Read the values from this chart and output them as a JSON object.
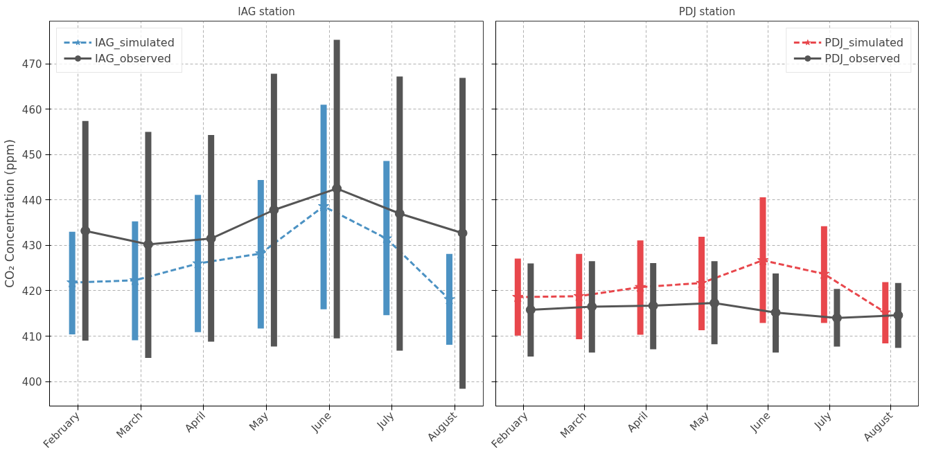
{
  "chart_data": [
    {
      "type": "line",
      "title": "IAG station",
      "ylabel": "CO₂ Concentration (ppm)",
      "categories": [
        "February",
        "March",
        "April",
        "May",
        "June",
        "July",
        "August"
      ],
      "series": [
        {
          "name": "IAG_simulated",
          "color": "#4c92c3",
          "marker": "star",
          "line_style": "dashed",
          "values": [
            421.8,
            422.3,
            426.0,
            428.2,
            438.6,
            431.5,
            418.1
          ],
          "errors": [
            [
              410.4,
              433.0
            ],
            [
              409.1,
              435.3
            ],
            [
              410.9,
              441.1
            ],
            [
              411.7,
              444.4
            ],
            [
              415.9,
              461.0
            ],
            [
              414.6,
              448.6
            ],
            [
              408.1,
              428.1
            ]
          ]
        },
        {
          "name": "IAG_observed",
          "color": "#555555",
          "marker": "circle",
          "line_style": "solid",
          "values": [
            433.2,
            430.2,
            431.5,
            437.8,
            442.5,
            437.0,
            432.7
          ],
          "errors": [
            [
              409.0,
              457.4
            ],
            [
              405.2,
              455.0
            ],
            [
              408.8,
              454.3
            ],
            [
              407.7,
              467.8
            ],
            [
              409.5,
              475.3
            ],
            [
              406.8,
              467.2
            ],
            [
              398.4,
              466.9
            ]
          ]
        }
      ],
      "ylim": [
        394.6,
        479.4
      ],
      "yticks": [
        400,
        410,
        420,
        430,
        440,
        450,
        460,
        470
      ],
      "grid": true,
      "legend": "top left"
    },
    {
      "type": "line",
      "title": "PDJ station",
      "categories": [
        "February",
        "March",
        "April",
        "May",
        "June",
        "July",
        "August"
      ],
      "series": [
        {
          "name": "PDJ_simulated",
          "color": "#e8474c",
          "marker": "star",
          "line_style": "dashed",
          "values": [
            418.6,
            418.8,
            420.8,
            421.7,
            426.7,
            423.7,
            415.2
          ],
          "errors": [
            [
              410.1,
              427.1
            ],
            [
              409.3,
              428.1
            ],
            [
              410.3,
              431.1
            ],
            [
              411.3,
              431.9
            ],
            [
              412.9,
              440.6
            ],
            [
              412.9,
              434.2
            ],
            [
              408.4,
              421.9
            ]
          ]
        },
        {
          "name": "PDJ_observed",
          "color": "#555555",
          "marker": "circle",
          "line_style": "solid",
          "values": [
            415.8,
            416.5,
            416.7,
            417.3,
            415.2,
            414.0,
            414.6
          ],
          "errors": [
            [
              405.5,
              426.0
            ],
            [
              406.4,
              426.5
            ],
            [
              407.1,
              426.1
            ],
            [
              408.2,
              426.5
            ],
            [
              406.4,
              423.8
            ],
            [
              407.7,
              420.4
            ],
            [
              407.4,
              421.7
            ]
          ]
        }
      ],
      "ylim": [
        394.6,
        479.4
      ],
      "yticks": [
        400,
        410,
        420,
        430,
        440,
        450,
        460,
        470
      ],
      "grid": true,
      "legend": "top right",
      "tick_labels": "x"
    }
  ]
}
